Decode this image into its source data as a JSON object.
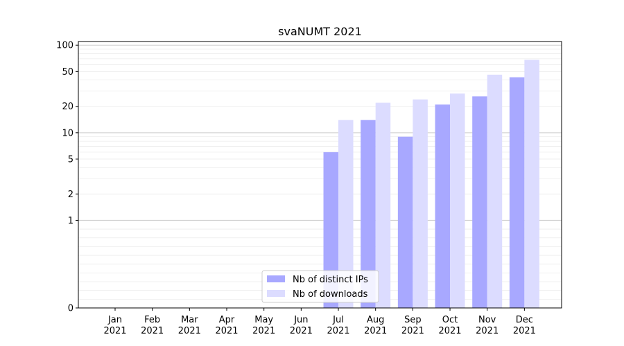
{
  "chart_data": {
    "type": "bar",
    "title": "svaNUMT 2021",
    "xlabel": "",
    "ylabel": "",
    "categories": [
      "Jan\n2021",
      "Feb\n2021",
      "Mar\n2021",
      "Apr\n2021",
      "May\n2021",
      "Jun\n2021",
      "Jul\n2021",
      "Aug\n2021",
      "Sep\n2021",
      "Oct\n2021",
      "Nov\n2021",
      "Dec\n2021"
    ],
    "series": [
      {
        "name": "Nb of distinct IPs",
        "color": "#a8a8ff",
        "values": [
          0,
          0,
          0,
          0,
          0,
          0,
          6,
          14,
          9,
          21,
          26,
          43
        ]
      },
      {
        "name": "Nb of downloads",
        "color": "#dcdcff",
        "values": [
          0,
          0,
          0,
          0,
          0,
          0,
          14,
          22,
          24,
          28,
          46,
          68
        ]
      }
    ],
    "y_scale": "symlog",
    "ylim": [
      0,
      110
    ],
    "yticks": [
      {
        "value": 0,
        "label": "0"
      },
      {
        "value": 1,
        "label": "1"
      },
      {
        "value": 2,
        "label": "2"
      },
      {
        "value": 5,
        "label": "5"
      },
      {
        "value": 10,
        "label": "10"
      },
      {
        "value": 20,
        "label": "20"
      },
      {
        "value": 50,
        "label": "50"
      },
      {
        "value": 100,
        "label": "100"
      }
    ],
    "grid": true,
    "legend_position": "bottom-center"
  }
}
